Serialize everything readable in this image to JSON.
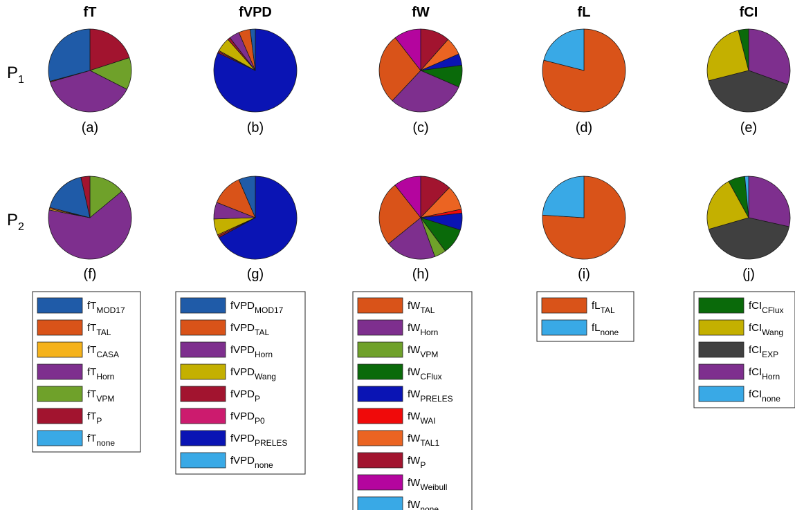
{
  "figure": {
    "column_titles": [
      "fT",
      "fVPD",
      "fW",
      "fL",
      "fCI"
    ],
    "row_labels": [
      {
        "main": "P",
        "sub": "1"
      },
      {
        "main": "P",
        "sub": "2"
      }
    ]
  },
  "legends": [
    {
      "prefix": "fT",
      "entries": [
        {
          "key": "MOD17",
          "sub": "MOD17",
          "color": "#1F5BA8"
        },
        {
          "key": "TAL",
          "sub": "TAL",
          "color": "#D95319"
        },
        {
          "key": "CASA",
          "sub": "CASA",
          "color": "#F5B21B"
        },
        {
          "key": "Horn",
          "sub": "Horn",
          "color": "#7E2F8E"
        },
        {
          "key": "VPM",
          "sub": "VPM",
          "color": "#6FA12A"
        },
        {
          "key": "P",
          "sub": "P",
          "color": "#A2142F"
        },
        {
          "key": "none",
          "sub": "none",
          "color": "#39A9E6"
        }
      ]
    },
    {
      "prefix": "fVPD",
      "entries": [
        {
          "key": "MOD17",
          "sub": "MOD17",
          "color": "#1F5BA8"
        },
        {
          "key": "TAL",
          "sub": "TAL",
          "color": "#D95319"
        },
        {
          "key": "Horn",
          "sub": "Horn",
          "color": "#7E2F8E"
        },
        {
          "key": "Wang",
          "sub": "Wang",
          "color": "#C4B000"
        },
        {
          "key": "P",
          "sub": "P",
          "color": "#A2142F"
        },
        {
          "key": "P0",
          "sub": "P0",
          "color": "#CC1B6E"
        },
        {
          "key": "PRELES",
          "sub": "PRELES",
          "color": "#0A14B4"
        },
        {
          "key": "none",
          "sub": "none",
          "color": "#39A9E6"
        }
      ]
    },
    {
      "prefix": "fW",
      "entries": [
        {
          "key": "TAL",
          "sub": "TAL",
          "color": "#D95319"
        },
        {
          "key": "Horn",
          "sub": "Horn",
          "color": "#7E2F8E"
        },
        {
          "key": "VPM",
          "sub": "VPM",
          "color": "#6FA12A"
        },
        {
          "key": "CFlux",
          "sub": "CFlux",
          "color": "#0A6A0A"
        },
        {
          "key": "PRELES",
          "sub": "PRELES",
          "color": "#0A14B4"
        },
        {
          "key": "WAI",
          "sub": "WAI",
          "color": "#F00A0A"
        },
        {
          "key": "TAL1",
          "sub": "TAL1",
          "color": "#EB6422"
        },
        {
          "key": "P",
          "sub": "P",
          "color": "#A2142F"
        },
        {
          "key": "Weibull",
          "sub": "Weibull",
          "color": "#B4059E"
        },
        {
          "key": "none",
          "sub": "none",
          "color": "#39A9E6"
        }
      ]
    },
    {
      "prefix": "fL",
      "entries": [
        {
          "key": "TAL",
          "sub": "TAL",
          "color": "#D95319"
        },
        {
          "key": "none",
          "sub": "none",
          "color": "#39A9E6"
        }
      ]
    },
    {
      "prefix": "fCI",
      "entries": [
        {
          "key": "CFlux",
          "sub": "CFlux",
          "color": "#0A6A0A"
        },
        {
          "key": "Wang",
          "sub": "Wang",
          "color": "#C4B000"
        },
        {
          "key": "EXP",
          "sub": "EXP",
          "color": "#404040"
        },
        {
          "key": "Horn",
          "sub": "Horn",
          "color": "#7E2F8E"
        },
        {
          "key": "none",
          "sub": "none",
          "color": "#39A9E6"
        }
      ]
    }
  ],
  "chart_data": [
    {
      "type": "pie",
      "label": "(a)",
      "column": "fT",
      "row": "P1",
      "slices": [
        {
          "name": "fT_P",
          "value": 20.0
        },
        {
          "name": "fT_VPM",
          "value": 12.5
        },
        {
          "name": "fT_Horn",
          "value": 38.0
        },
        {
          "name": "fT_TAL",
          "value": 0.3
        },
        {
          "name": "fT_MOD17",
          "value": 29.2
        }
      ]
    },
    {
      "type": "pie",
      "label": "(b)",
      "column": "fVPD",
      "row": "P1",
      "slices": [
        {
          "name": "fVPD_PRELES",
          "value": 82.0
        },
        {
          "name": "fVPD_P",
          "value": 0.6
        },
        {
          "name": "fVPD_TAL",
          "value": 0.4
        },
        {
          "name": "fVPD_Wang",
          "value": 5.5
        },
        {
          "name": "fVPD_P",
          "value": 1.0
        },
        {
          "name": "fVPD_Horn",
          "value": 4.0
        },
        {
          "name": "fVPD_TAL",
          "value": 4.5
        },
        {
          "name": "fVPD_MOD17",
          "value": 2.0
        }
      ]
    },
    {
      "type": "pie",
      "label": "(c)",
      "column": "fW",
      "row": "P1",
      "slices": [
        {
          "name": "fW_P",
          "value": 11.5
        },
        {
          "name": "fW_TAL1",
          "value": 7.0
        },
        {
          "name": "fW_PRELES",
          "value": 4.5
        },
        {
          "name": "fW_CFlux",
          "value": 8.5
        },
        {
          "name": "fW_Horn",
          "value": 30.5
        },
        {
          "name": "fW_TAL",
          "value": 27.5
        },
        {
          "name": "fW_Weibull",
          "value": 10.5
        }
      ]
    },
    {
      "type": "pie",
      "label": "(d)",
      "column": "fL",
      "row": "P1",
      "slices": [
        {
          "name": "fL_TAL",
          "value": 79.0
        },
        {
          "name": "fL_none",
          "value": 21.0
        }
      ]
    },
    {
      "type": "pie",
      "label": "(e)",
      "column": "fCI",
      "row": "P1",
      "slices": [
        {
          "name": "fCI_Horn",
          "value": 30.5
        },
        {
          "name": "fCI_EXP",
          "value": 40.5
        },
        {
          "name": "fCI_Wang",
          "value": 25.0
        },
        {
          "name": "fCI_CFlux",
          "value": 4.0
        }
      ]
    },
    {
      "type": "pie",
      "label": "(f)",
      "column": "fT",
      "row": "P2",
      "slices": [
        {
          "name": "fT_VPM",
          "value": 14.0
        },
        {
          "name": "fT_Horn",
          "value": 64.0
        },
        {
          "name": "fT_CASA",
          "value": 0.5
        },
        {
          "name": "fT_TAL",
          "value": 0.5
        },
        {
          "name": "fT_MOD17",
          "value": 17.5
        },
        {
          "name": "fT_P",
          "value": 3.5
        }
      ]
    },
    {
      "type": "pie",
      "label": "(g)",
      "column": "fVPD",
      "row": "P2",
      "slices": [
        {
          "name": "fVPD_PRELES",
          "value": 67.0
        },
        {
          "name": "fVPD_P",
          "value": 0.7
        },
        {
          "name": "fVPD_TAL",
          "value": 0.5
        },
        {
          "name": "fVPD_Wang",
          "value": 6.3
        },
        {
          "name": "fVPD_Horn",
          "value": 6.5
        },
        {
          "name": "fVPD_TAL",
          "value": 12.5
        },
        {
          "name": "fVPD_MOD17",
          "value": 6.5
        }
      ]
    },
    {
      "type": "pie",
      "label": "(h)",
      "column": "fW",
      "row": "P2",
      "slices": [
        {
          "name": "fW_P",
          "value": 12.0
        },
        {
          "name": "fW_TAL1",
          "value": 9.5
        },
        {
          "name": "fW_WAI",
          "value": 1.5
        },
        {
          "name": "fW_PRELES",
          "value": 6.5
        },
        {
          "name": "fW_CFlux",
          "value": 10.0
        },
        {
          "name": "fW_VPM",
          "value": 4.5
        },
        {
          "name": "fW_Horn",
          "value": 19.5
        },
        {
          "name": "fW_TAL",
          "value": 25.0
        },
        {
          "name": "fW_Weibull",
          "value": 10.5
        }
      ]
    },
    {
      "type": "pie",
      "label": "(i)",
      "column": "fL",
      "row": "P2",
      "slices": [
        {
          "name": "fL_TAL",
          "value": 76.0
        },
        {
          "name": "fL_none",
          "value": 24.0
        }
      ]
    },
    {
      "type": "pie",
      "label": "(j)",
      "column": "fCI",
      "row": "P2",
      "slices": [
        {
          "name": "fCI_Horn",
          "value": 28.5
        },
        {
          "name": "fCI_EXP",
          "value": 42.0
        },
        {
          "name": "fCI_Wang",
          "value": 21.5
        },
        {
          "name": "fCI_CFlux",
          "value": 6.5
        },
        {
          "name": "fCI_none",
          "value": 1.5
        }
      ]
    }
  ]
}
